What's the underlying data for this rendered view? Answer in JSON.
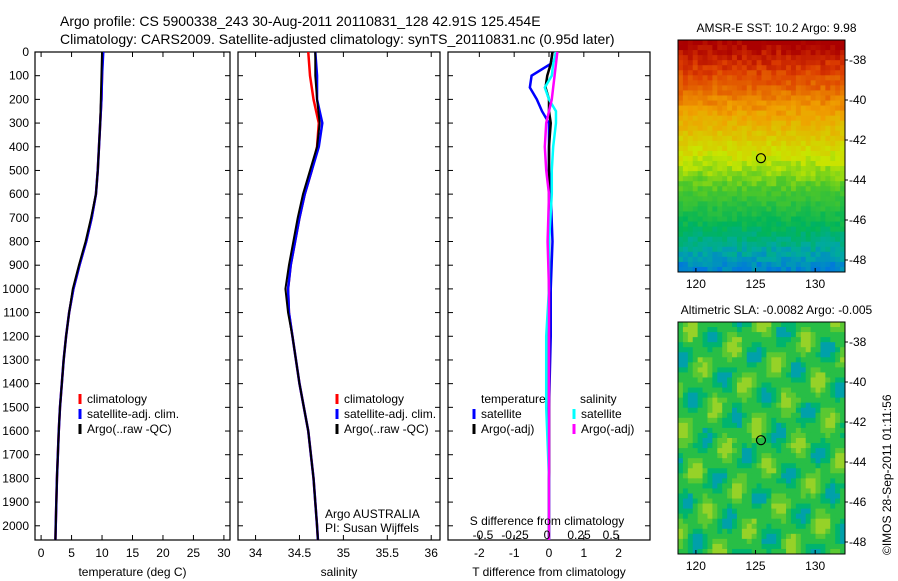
{
  "title_line1": "Argo profile: CS 5900338_243 30-Aug-2011 20110831_128 42.91S 125.454E",
  "title_line2": "Climatology: CARS2009. Satellite-adjusted climatology: synTS_20110831.nc (0.95d later)",
  "side_label": "©IMOS 28-Sep-2011 01:11:56",
  "colors": {
    "climatology": "#ff0000",
    "satellite": "#0000ff",
    "argo": "#000000",
    "sal_satellite": "#00ffff",
    "sal_argo": "#ff00ff"
  },
  "chart_data": [
    {
      "type": "line",
      "xlabel": "temperature (deg C)",
      "xlim": [
        -1,
        31
      ],
      "xticks": [
        "0",
        "5",
        "10",
        "15",
        "20",
        "25",
        "30"
      ],
      "xtick_values": [
        0,
        5,
        10,
        15,
        20,
        25,
        30
      ],
      "ylim": [
        0,
        2060
      ],
      "yticks": [
        "0",
        "100",
        "200",
        "300",
        "400",
        "500",
        "600",
        "700",
        "800",
        "900",
        "1000",
        "1100",
        "1200",
        "1300",
        "1400",
        "1500",
        "1600",
        "1700",
        "1800",
        "1900",
        "2000"
      ],
      "depth": [
        0,
        100,
        200,
        300,
        400,
        500,
        600,
        700,
        800,
        900,
        1000,
        1100,
        1200,
        1300,
        1400,
        1500,
        1600,
        1700,
        1800,
        1900,
        2000,
        2060
      ],
      "series": [
        {
          "name": "climatology",
          "values": [
            10.1,
            10,
            9.9,
            9.7,
            9.5,
            9.3,
            9,
            8.3,
            7.4,
            6.3,
            5.3,
            4.6,
            4.1,
            3.7,
            3.4,
            3.1,
            2.9,
            2.75,
            2.6,
            2.5,
            2.4,
            2.35
          ]
        },
        {
          "name": "satellite-adj. clim.",
          "values": [
            10.2,
            10,
            9.9,
            9.7,
            9.5,
            9.3,
            9,
            8.3,
            7.4,
            6.3,
            5.3,
            4.6,
            4.1,
            3.7,
            3.4,
            3.1,
            2.9,
            2.75,
            2.6,
            2.5,
            2.4,
            2.35
          ]
        },
        {
          "name": "Argo(..raw -QC)",
          "values": [
            10,
            9.9,
            9.8,
            9.7,
            9.5,
            9.3,
            9,
            8.2,
            7.3,
            6.2,
            5.2,
            4.6,
            4.1,
            3.7,
            3.4,
            3.1,
            2.9,
            2.75,
            2.6,
            2.5,
            2.4,
            2.35
          ]
        }
      ],
      "legend": [
        "climatology",
        "satellite-adj. clim.",
        "Argo(..raw -QC)"
      ]
    },
    {
      "type": "line",
      "xlabel": "salinity",
      "xlim": [
        33.8,
        36.1
      ],
      "xticks": [
        "34",
        "34.5",
        "35",
        "35.5",
        "36"
      ],
      "xtick_values": [
        34,
        34.5,
        35,
        35.5,
        36
      ],
      "depth": [
        0,
        100,
        200,
        300,
        400,
        500,
        600,
        700,
        800,
        900,
        1000,
        1100,
        1200,
        1300,
        1400,
        1500,
        1600,
        1700,
        1800,
        1900,
        2000,
        2060
      ],
      "series": [
        {
          "name": "climatology",
          "values": [
            34.6,
            34.62,
            34.66,
            34.72,
            34.7,
            34.64,
            34.56,
            34.5,
            34.45,
            34.4,
            34.37,
            34.38,
            34.42,
            34.46,
            34.5,
            34.55,
            34.6,
            34.63,
            34.66,
            34.68,
            34.7,
            34.71
          ]
        },
        {
          "name": "satellite-adj. clim.",
          "values": [
            34.68,
            34.7,
            34.7,
            34.76,
            34.72,
            34.64,
            34.56,
            34.5,
            34.45,
            34.4,
            34.37,
            34.38,
            34.42,
            34.46,
            34.5,
            34.55,
            34.6,
            34.63,
            34.66,
            34.68,
            34.7,
            34.71
          ]
        },
        {
          "name": "Argo(..raw -QC)",
          "values": [
            34.68,
            34.68,
            34.7,
            34.73,
            34.7,
            34.62,
            34.54,
            34.48,
            34.43,
            34.38,
            34.34,
            34.37,
            34.42,
            34.46,
            34.5,
            34.55,
            34.6,
            34.63,
            34.66,
            34.68,
            34.7,
            34.71
          ]
        }
      ],
      "legend": [
        "climatology",
        "satellite-adj. clim.",
        "Argo(..raw -QC)"
      ],
      "annotation": [
        "Argo AUSTRALIA",
        "PI: Susan Wijffels"
      ]
    },
    {
      "type": "line",
      "xlabel": "T difference from climatology",
      "xlim": [
        -2.9,
        2.9
      ],
      "xticks": [
        "-2",
        "-1",
        "0",
        "1",
        "2"
      ],
      "xtick_values": [
        -2,
        -1,
        0,
        1,
        2
      ],
      "x2label": "S difference from climatology",
      "x2ticks": [
        "-0.5",
        "-0.25",
        "0",
        "0.25",
        "0.5"
      ],
      "depth": [
        0,
        50,
        100,
        150,
        200,
        250,
        300,
        400,
        500,
        600,
        800,
        1000,
        1200,
        1500,
        1800,
        2060
      ],
      "series": [
        {
          "name": "temperature satellite",
          "values": [
            0.1,
            0.05,
            -0.5,
            -0.55,
            -0.35,
            -0.2,
            0,
            0,
            0,
            0.05,
            0.1,
            0.05,
            0.05,
            0,
            0,
            0
          ]
        },
        {
          "name": "temperature Argo(-adj)",
          "values": [
            0.1,
            0.05,
            -0.05,
            -0.1,
            0,
            0,
            0.05,
            0,
            0,
            0,
            0,
            0,
            0,
            0,
            0,
            0
          ]
        },
        {
          "name": "salinity satellite",
          "values": [
            0.05,
            0.03,
            0.02,
            -0.03,
            0,
            0.05,
            0.05,
            0.03,
            0.02,
            0.02,
            0,
            0,
            -0.02,
            -0.02,
            0,
            0
          ]
        },
        {
          "name": "salinity Argo(-adj)",
          "values": [
            0.06,
            0.05,
            0.04,
            0.03,
            0.02,
            0,
            -0.02,
            -0.03,
            -0.02,
            0,
            -0.01,
            0,
            0,
            0,
            0,
            0
          ]
        }
      ],
      "legend_titles": [
        "temperature",
        "salinity"
      ],
      "legend": [
        "satellite",
        "Argo(-adj)",
        "satellite",
        "Argo(-adj)"
      ]
    },
    {
      "type": "heatmap",
      "title": "AMSR-E SST: 10.2 Argo: 9.98",
      "xticks": [
        "120",
        "125",
        "130"
      ],
      "yticks": [
        "-38",
        "-40",
        "-42",
        "-44",
        "-46",
        "-48"
      ],
      "marker": [
        125.454,
        -42.91
      ]
    },
    {
      "type": "heatmap",
      "title": "Altimetric SLA: -0.0082 Argo: -0.005",
      "xticks": [
        "120",
        "125",
        "130"
      ],
      "yticks": [
        "-38",
        "-40",
        "-42",
        "-44",
        "-46",
        "-48"
      ],
      "marker": [
        125.454,
        -42.91
      ]
    }
  ]
}
